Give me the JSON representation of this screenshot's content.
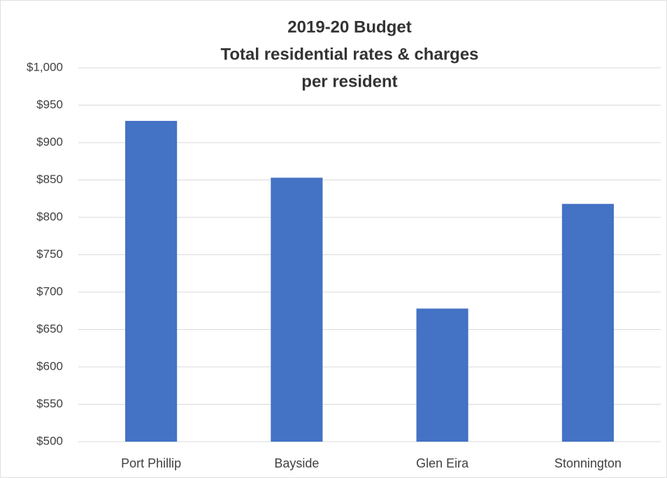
{
  "chart_data": {
    "type": "bar",
    "title": [
      "2019-20 Budget",
      "Total residential rates & charges",
      "per resident"
    ],
    "categories": [
      "Port Phillip",
      "Bayside",
      "Glen Eira",
      "Stonnington"
    ],
    "values": [
      929,
      853,
      678,
      818
    ],
    "color": "#4472c4",
    "ylim": [
      500,
      1000
    ],
    "yticks": [
      {
        "value": 500,
        "label": "$500"
      },
      {
        "value": 550,
        "label": "$550"
      },
      {
        "value": 600,
        "label": "$600"
      },
      {
        "value": 650,
        "label": "$650"
      },
      {
        "value": 700,
        "label": "$700"
      },
      {
        "value": 750,
        "label": "$750"
      },
      {
        "value": 800,
        "label": "$800"
      },
      {
        "value": 850,
        "label": "$850"
      },
      {
        "value": 900,
        "label": "$900"
      },
      {
        "value": 950,
        "label": "$950"
      },
      {
        "value": 1000,
        "label": "$1,000"
      }
    ],
    "grid": true
  }
}
